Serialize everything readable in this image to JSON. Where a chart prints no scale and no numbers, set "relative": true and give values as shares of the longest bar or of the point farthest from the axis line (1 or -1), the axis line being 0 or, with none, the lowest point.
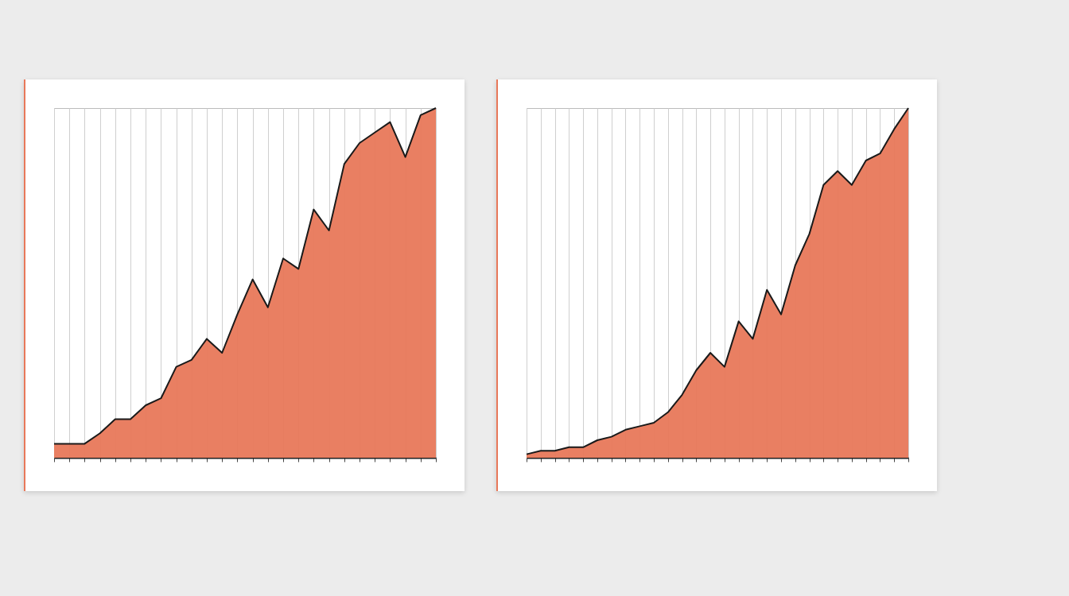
{
  "chart_data": [
    {
      "type": "area",
      "relative": true,
      "grid": "x",
      "categories": [
        null,
        null,
        null,
        null,
        null,
        null,
        null,
        null,
        null,
        null,
        null,
        null,
        null,
        null,
        null,
        null,
        null,
        null,
        null,
        null,
        null,
        null,
        null,
        null,
        null,
        null
      ],
      "series": [
        {
          "color": "#e8785a",
          "values": [
            0.04,
            0.04,
            0.04,
            0.07,
            0.11,
            0.11,
            0.15,
            0.17,
            0.26,
            0.28,
            0.34,
            0.3,
            0.41,
            0.51,
            0.43,
            0.57,
            0.54,
            0.71,
            0.65,
            0.84,
            0.9,
            0.93,
            0.96,
            0.86,
            0.98,
            1
          ]
        }
      ]
    },
    {
      "type": "area",
      "relative": true,
      "grid": "x",
      "categories": [
        null,
        null,
        null,
        null,
        null,
        null,
        null,
        null,
        null,
        null,
        null,
        null,
        null,
        null,
        null,
        null,
        null,
        null,
        null,
        null,
        null,
        null,
        null,
        null,
        null,
        null,
        null,
        null
      ],
      "series": [
        {
          "color": "#e8785a",
          "values": [
            0.01,
            0.02,
            0.02,
            0.03,
            0.03,
            0.05,
            0.06,
            0.08,
            0.09,
            0.1,
            0.13,
            0.18,
            0.25,
            0.3,
            0.26,
            0.39,
            0.34,
            0.48,
            0.41,
            0.55,
            0.64,
            0.78,
            0.82,
            0.78,
            0.85,
            0.87,
            0.94,
            1
          ]
        }
      ]
    }
  ]
}
